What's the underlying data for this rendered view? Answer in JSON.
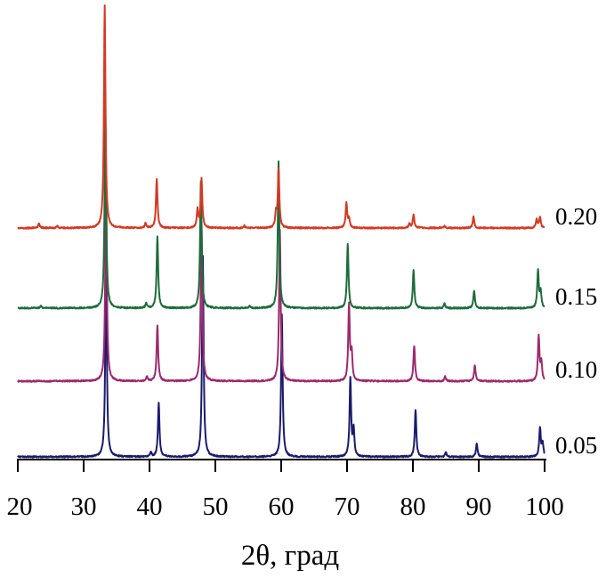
{
  "chart_data": {
    "type": "line",
    "title": "",
    "xlabel": "2θ, град",
    "ylabel": "",
    "xlim": [
      20,
      100
    ],
    "x_ticks": [
      20,
      30,
      40,
      50,
      60,
      70,
      80,
      90,
      100
    ],
    "y_axis_visible": false,
    "grid": false,
    "legend": "series labels at right end of each curve",
    "y_units": "relative intensity (0–1)",
    "series": [
      {
        "name": "0.05",
        "color": "#1b1b6b",
        "peaks": [
          [
            33.4,
            0.88
          ],
          [
            40.2,
            0.02
          ],
          [
            41.4,
            0.24
          ],
          [
            48.1,
            0.9
          ],
          [
            60.1,
            0.64
          ],
          [
            70.5,
            0.35
          ],
          [
            71.0,
            0.12
          ],
          [
            80.4,
            0.21
          ],
          [
            85.0,
            0.02
          ],
          [
            89.7,
            0.06
          ],
          [
            99.3,
            0.13
          ],
          [
            99.7,
            0.06
          ]
        ]
      },
      {
        "name": "0.10",
        "color": "#9b2a6e",
        "peaks": [
          [
            33.4,
            0.9
          ],
          [
            39.6,
            0.02
          ],
          [
            41.2,
            0.25
          ],
          [
            47.9,
            0.72
          ],
          [
            59.8,
            0.68
          ],
          [
            70.3,
            0.34
          ],
          [
            70.7,
            0.12
          ],
          [
            80.2,
            0.16
          ],
          [
            84.9,
            0.02
          ],
          [
            89.4,
            0.07
          ],
          [
            99.1,
            0.2
          ],
          [
            99.5,
            0.08
          ]
        ]
      },
      {
        "name": "0.15",
        "color": "#1f6b3c",
        "peaks": [
          [
            23.5,
            0.01
          ],
          [
            33.3,
            0.9
          ],
          [
            39.5,
            0.02
          ],
          [
            41.2,
            0.32
          ],
          [
            47.8,
            0.57
          ],
          [
            55.2,
            0.01
          ],
          [
            59.6,
            0.66
          ],
          [
            70.1,
            0.29
          ],
          [
            80.1,
            0.17
          ],
          [
            84.8,
            0.02
          ],
          [
            89.3,
            0.08
          ],
          [
            99.0,
            0.17
          ],
          [
            99.4,
            0.07
          ]
        ]
      },
      {
        "name": "0.20",
        "color": "#d23a24",
        "peaks": [
          [
            23.2,
            0.02
          ],
          [
            26.0,
            0.01
          ],
          [
            33.2,
            1.0
          ],
          [
            39.4,
            0.02
          ],
          [
            41.1,
            0.22
          ],
          [
            47.3,
            0.08
          ],
          [
            47.9,
            0.22
          ],
          [
            54.4,
            0.01
          ],
          [
            59.2,
            0.06
          ],
          [
            59.6,
            0.26
          ],
          [
            69.9,
            0.11
          ],
          [
            70.3,
            0.04
          ],
          [
            79.5,
            0.02
          ],
          [
            80.1,
            0.06
          ],
          [
            84.8,
            0.01
          ],
          [
            89.2,
            0.05
          ],
          [
            98.8,
            0.04
          ],
          [
            99.3,
            0.05
          ]
        ]
      }
    ]
  }
}
